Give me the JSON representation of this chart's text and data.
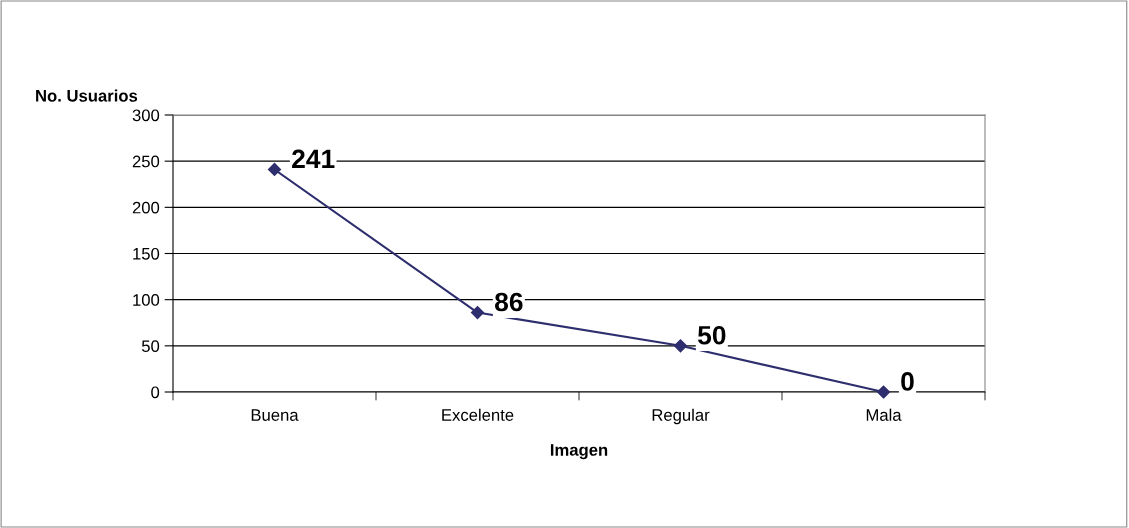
{
  "chart_data": {
    "type": "line",
    "ylabel": "No. Usuarios",
    "xlabel": "Imagen",
    "categories": [
      "Buena",
      "Excelente",
      "Regular",
      "Mala"
    ],
    "series": [
      {
        "color": "#2e2e6e",
        "values": [
          241,
          86,
          50,
          0
        ]
      }
    ],
    "ylim": [
      0,
      300
    ],
    "yticks": [
      0,
      50,
      100,
      150,
      200,
      250,
      300
    ],
    "grid": "y",
    "marker": "diamond",
    "line_style": "solid",
    "data_labels": true,
    "legend": false
  }
}
